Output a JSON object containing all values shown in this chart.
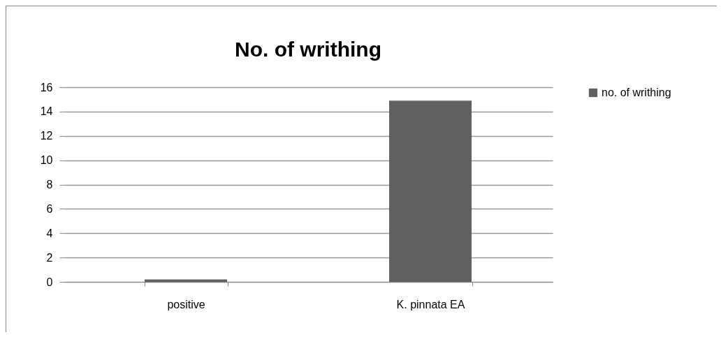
{
  "chart_data": {
    "type": "bar",
    "title": "No. of writhing",
    "categories": [
      "positive",
      "K. pinnata EA"
    ],
    "series": [
      {
        "name": "no. of writhing",
        "color": "#606060",
        "values": [
          0.2,
          14.9
        ]
      }
    ],
    "ylim": [
      0,
      16
    ],
    "yticks": [
      0,
      2,
      4,
      6,
      8,
      10,
      12,
      14,
      16
    ],
    "grid": "y",
    "legend": "right"
  }
}
